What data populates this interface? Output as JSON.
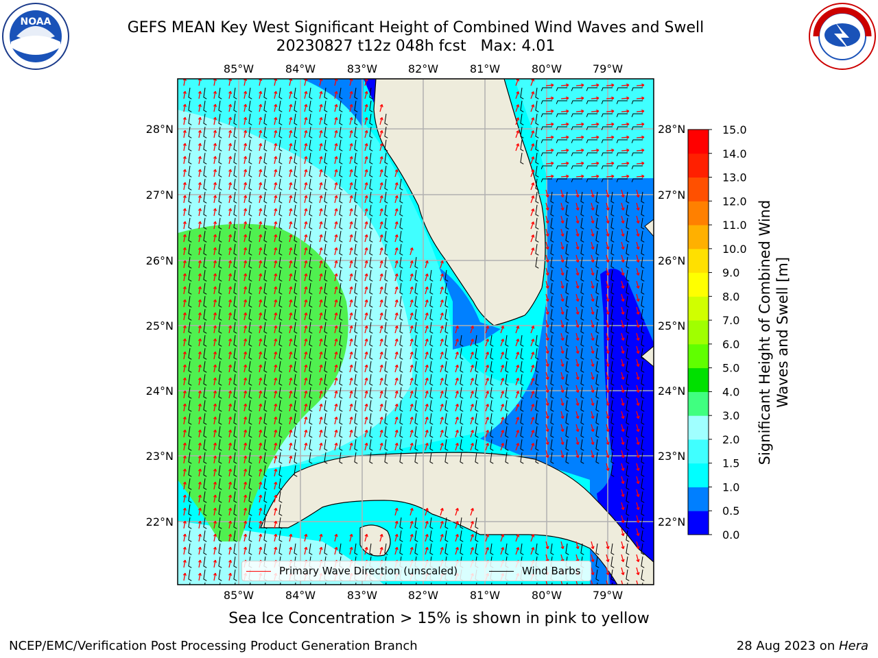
{
  "header": {
    "title_line1": "GEFS MEAN Key West Significant Height of Combined Wind Waves and Swell",
    "title_line2": "20230827 t12z 048h fcst   Max: 4.01"
  },
  "logos": {
    "noaa": {
      "text": "NOAA",
      "ring_text": "NATIONAL OCEANIC AND ATMOSPHERIC ADMINISTRATION · U.S. DEPARTMENT OF COMMERCE"
    },
    "nws": {
      "ring_text": "NATIONAL WEATHER SERVICE"
    }
  },
  "map": {
    "lon_labels": [
      "85°W",
      "84°W",
      "83°W",
      "82°W",
      "81°W",
      "80°W",
      "79°W"
    ],
    "lat_labels": [
      "28°N",
      "27°N",
      "26°N",
      "25°N",
      "24°N",
      "23°N",
      "22°N"
    ],
    "extent": {
      "lon_min": -86.0,
      "lon_max": -78.3,
      "lat_min": 21.0,
      "lat_max": 28.8
    },
    "land_color": "#eeecdc",
    "grid_color": "#b0b0b0",
    "wave_arrow_color": "#ff0000",
    "wind_barb_color": "#000000"
  },
  "legend": {
    "wave_label": "Primary Wave Direction (unscaled)",
    "barb_label": "Wind Barbs"
  },
  "colorbar": {
    "title": "Significant Height of Combined Wind Waves and Swell [m]",
    "ticks": [
      "0.0",
      "0.5",
      "1.0",
      "1.5",
      "2.0",
      "3.0",
      "4.0",
      "5.0",
      "6.0",
      "7.0",
      "8.0",
      "9.0",
      "10.0",
      "11.0",
      "12.0",
      "13.0",
      "14.0",
      "15.0"
    ],
    "colors": [
      "#0000ff",
      "#007fff",
      "#00ffff",
      "#40ffff",
      "#a0ffff",
      "#40ff80",
      "#00e000",
      "#60ff00",
      "#a0ff00",
      "#d0ff00",
      "#ffff00",
      "#ffe000",
      "#ffb000",
      "#ff8000",
      "#ff5000",
      "#ff2000",
      "#ff0000"
    ]
  },
  "chart_data": {
    "type": "heatmap",
    "variable": "Significant Height of Combined Wind Waves and Swell",
    "units": "m",
    "max_value": 4.01,
    "color_levels": [
      0.0,
      0.5,
      1.0,
      1.5,
      2.0,
      3.0,
      4.0,
      5.0,
      6.0,
      7.0,
      8.0,
      9.0,
      10.0,
      11.0,
      12.0,
      13.0,
      14.0,
      15.0
    ]
  },
  "caption": "Sea Ice Concentration > 15% is shown in pink to yellow",
  "footer": {
    "left": "NCEP/EMC/Verification Post Processing Product Generation Branch",
    "right_date": "28 Aug 2023 on ",
    "right_host": "Hera"
  }
}
